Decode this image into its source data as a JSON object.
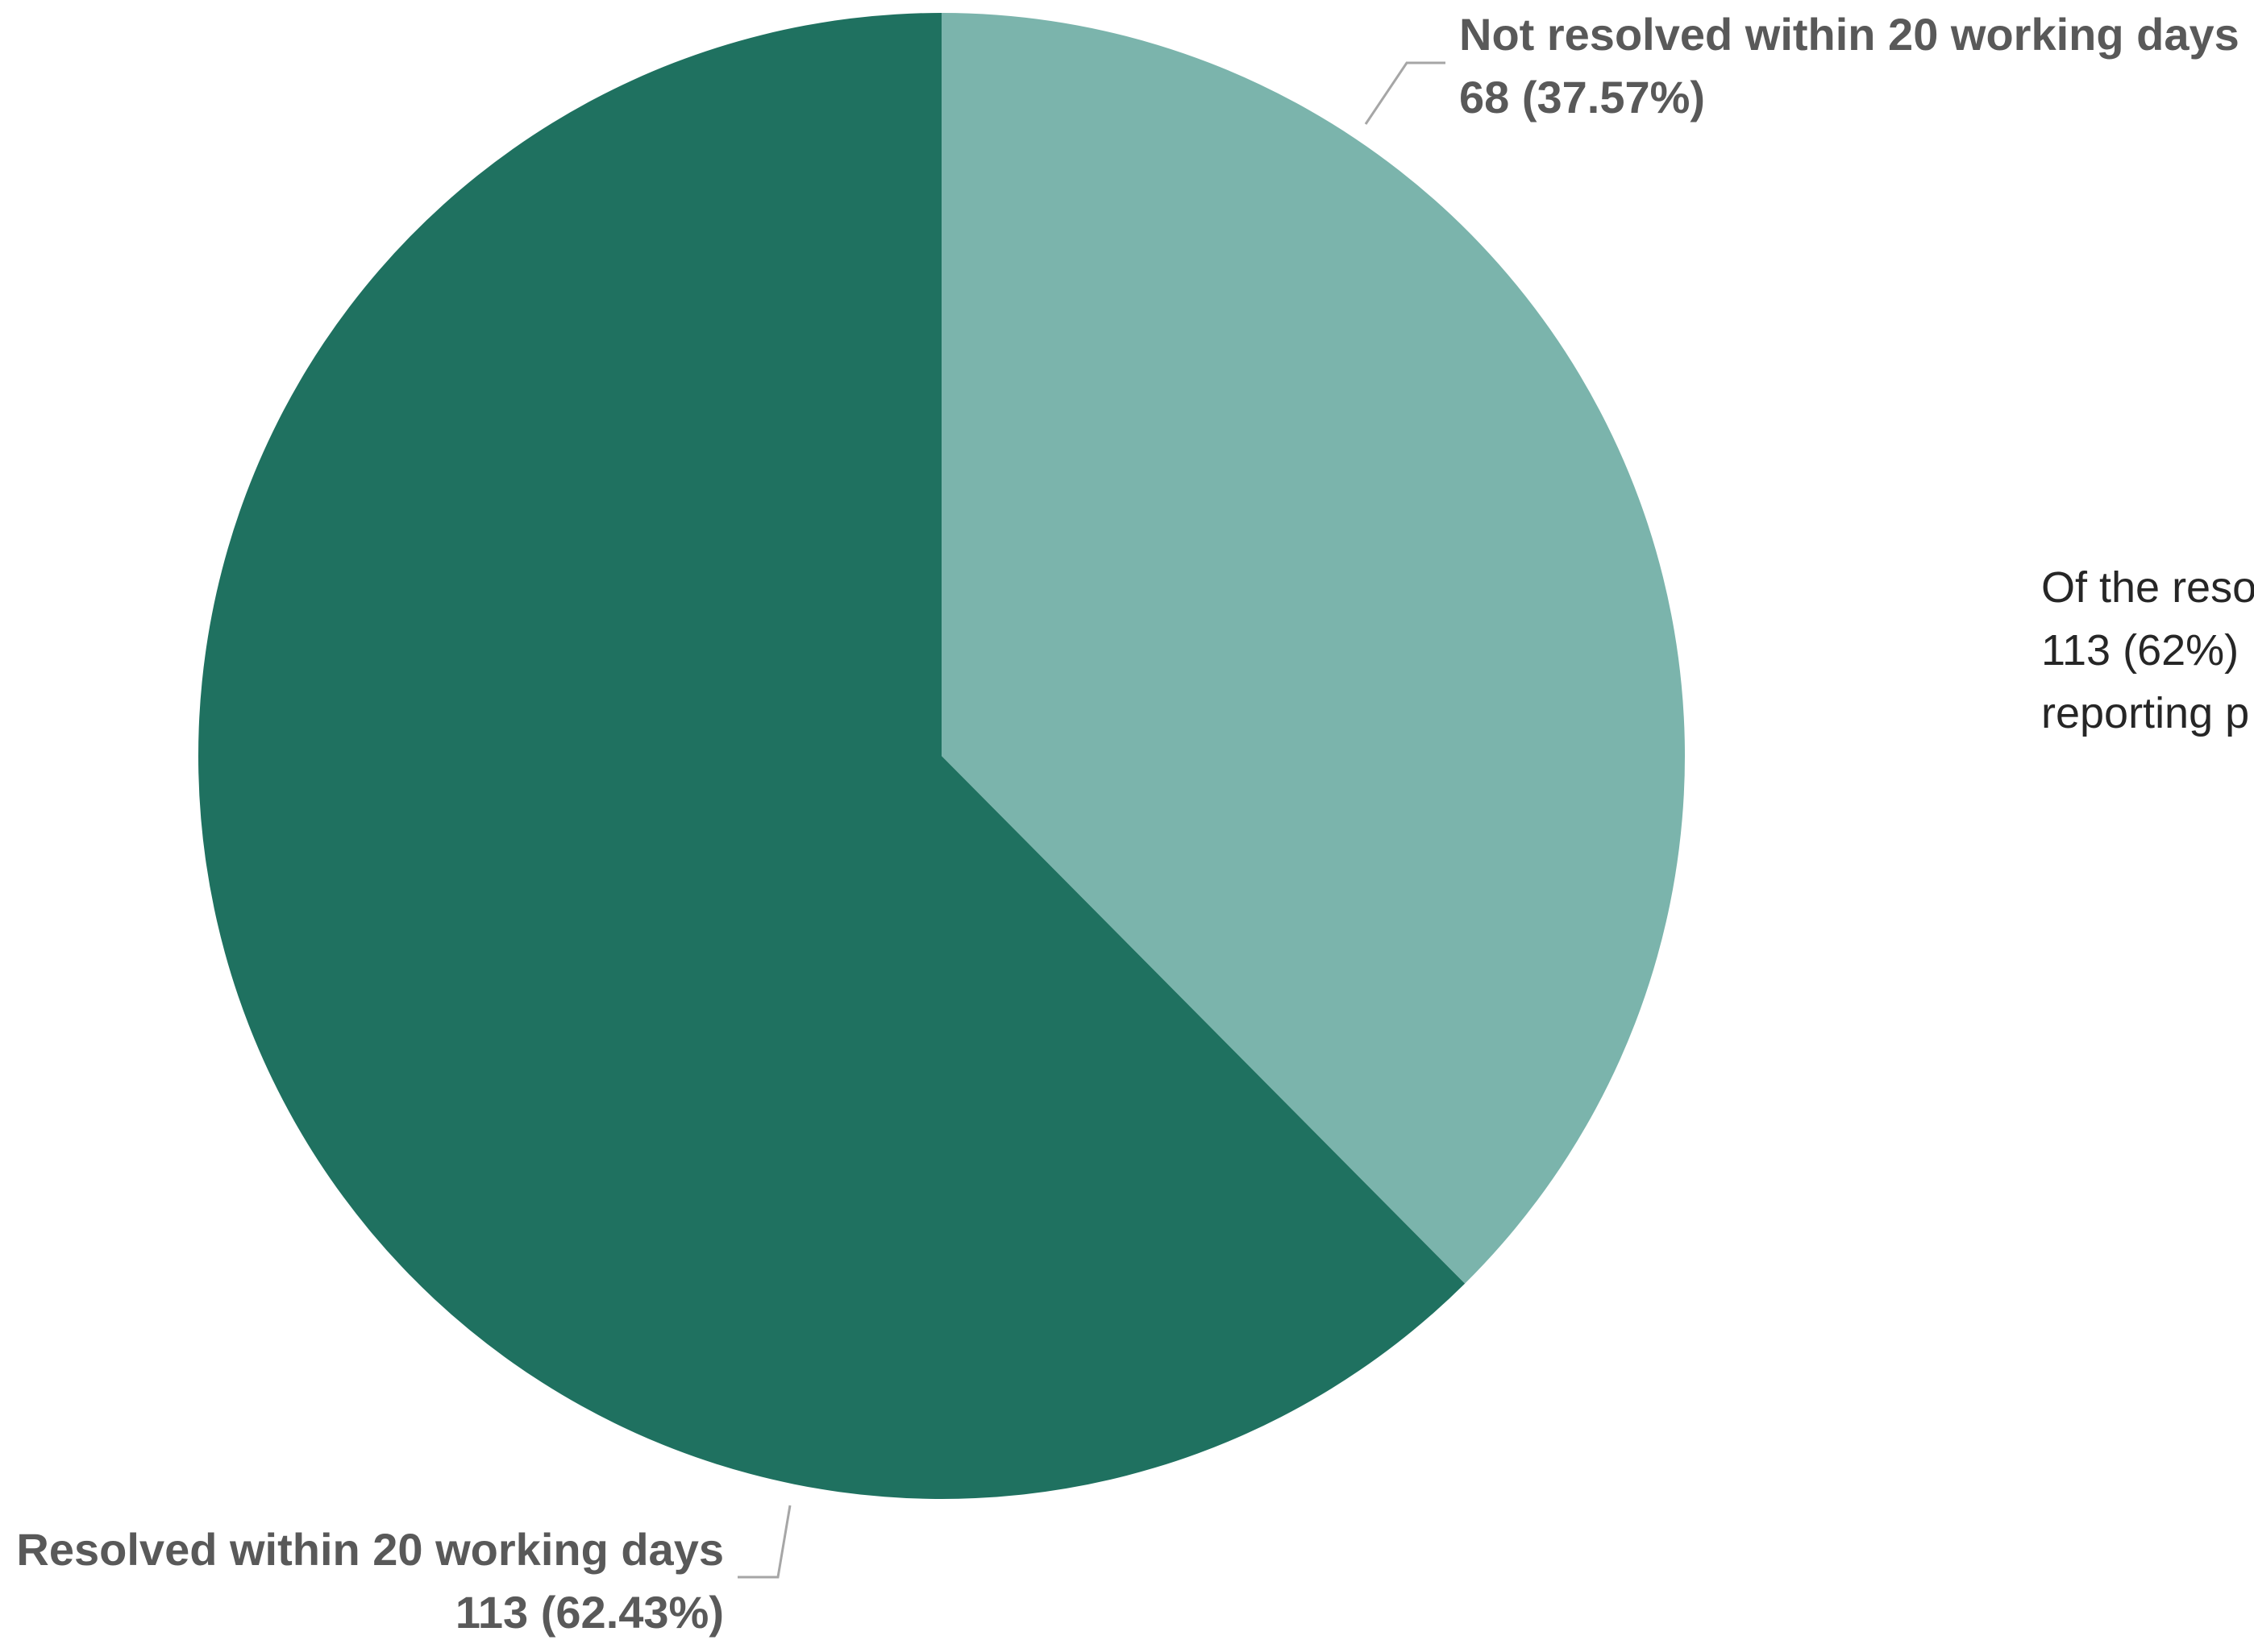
{
  "chart_data": {
    "type": "pie",
    "start_angle_deg": 0,
    "direction": "clockwise",
    "slices": [
      {
        "name": "Not resolved within 20 working days",
        "value": 68,
        "value_label": "68 (37.57%)",
        "percent": 37.57,
        "color": "#7BB4AC"
      },
      {
        "name": "Resolved within 20 working days",
        "value": 113,
        "value_label": "113 (62.43%)",
        "percent": 62.43,
        "color": "#1F7160"
      }
    ],
    "annotation": {
      "lines": [
        "Of the reso",
        "113 (62%)",
        "reporting p"
      ]
    }
  },
  "styles": {
    "label_color": "#595959",
    "annotation_color": "#262626",
    "leader_color": "#A6A6A6",
    "background": "#FFFFFF"
  }
}
